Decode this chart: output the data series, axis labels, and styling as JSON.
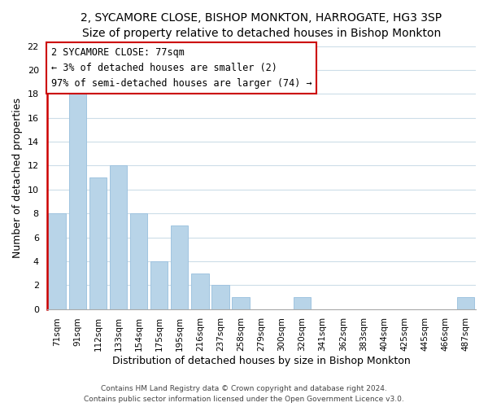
{
  "title_line1": "2, SYCAMORE CLOSE, BISHOP MONKTON, HARROGATE, HG3 3SP",
  "title_line2": "Size of property relative to detached houses in Bishop Monkton",
  "xlabel": "Distribution of detached houses by size in Bishop Monkton",
  "ylabel": "Number of detached properties",
  "bin_labels": [
    "71sqm",
    "91sqm",
    "112sqm",
    "133sqm",
    "154sqm",
    "175sqm",
    "195sqm",
    "216sqm",
    "237sqm",
    "258sqm",
    "279sqm",
    "300sqm",
    "320sqm",
    "341sqm",
    "362sqm",
    "383sqm",
    "404sqm",
    "425sqm",
    "445sqm",
    "466sqm",
    "487sqm"
  ],
  "bar_values": [
    8,
    18,
    11,
    12,
    8,
    4,
    7,
    3,
    2,
    1,
    0,
    0,
    1,
    0,
    0,
    0,
    0,
    0,
    0,
    0,
    1
  ],
  "bar_color": "#b8d4e8",
  "bar_edge_color": "#a0c4e0",
  "highlight_color": "#cc0000",
  "subject_line": "2 SYCAMORE CLOSE: 77sqm",
  "annotation_line2": "← 3% of detached houses are smaller (2)",
  "annotation_line3": "97% of semi-detached houses are larger (74) →",
  "annotation_box_color": "#ffffff",
  "annotation_box_edge_color": "#cc0000",
  "ylim": [
    0,
    22
  ],
  "yticks": [
    0,
    2,
    4,
    6,
    8,
    10,
    12,
    14,
    16,
    18,
    20,
    22
  ],
  "footer_line1": "Contains HM Land Registry data © Crown copyright and database right 2024.",
  "footer_line2": "Contains public sector information licensed under the Open Government Licence v3.0.",
  "bg_color": "#ffffff",
  "grid_color": "#ccdde8",
  "annotation_fontsize": 8.5,
  "title_fontsize1": 10,
  "title_fontsize2": 9.5,
  "xlabel_fontsize": 9,
  "ylabel_fontsize": 9
}
